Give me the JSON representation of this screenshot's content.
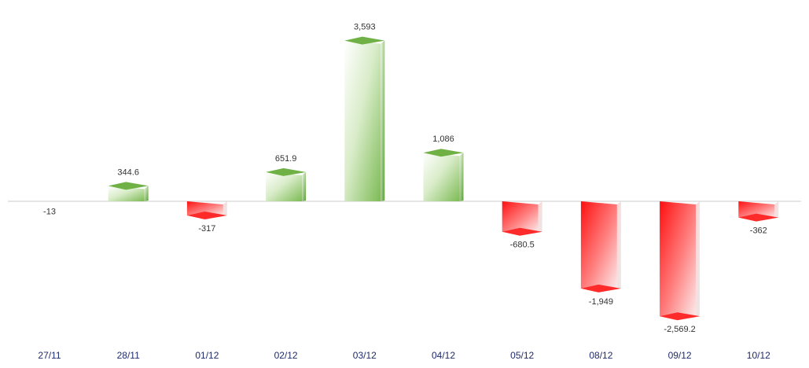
{
  "chart_data": {
    "type": "bar",
    "categories": [
      "27/11",
      "28/11",
      "01/12",
      "02/12",
      "03/12",
      "04/12",
      "05/12",
      "08/12",
      "09/12",
      "10/12"
    ],
    "values": [
      -13,
      344.6,
      -317,
      651.9,
      3593,
      1086,
      -680.5,
      -1949,
      -2569.2,
      -362
    ],
    "value_labels": [
      "-13",
      "344.6",
      "-317",
      "651.9",
      "3,593",
      "1,086",
      "-680.5",
      "-1,949",
      "-2,569.2",
      "-362"
    ],
    "title": "",
    "xlabel": "",
    "ylabel": "",
    "grid": false,
    "legend": "none",
    "style": "3d-bar",
    "colors": {
      "positive": "#5aa832",
      "negative": "#ff1a1a",
      "category_text": "#1f2a6b",
      "axis": "#cccccc"
    }
  }
}
